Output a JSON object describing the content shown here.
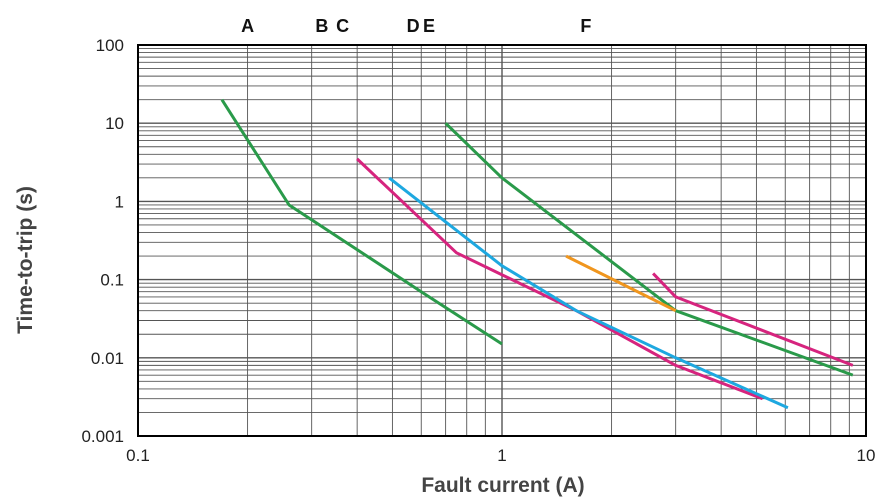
{
  "chart_data": {
    "type": "line",
    "xscale": "log",
    "yscale": "log",
    "xlim": [
      0.1,
      10
    ],
    "ylim": [
      0.001,
      100
    ],
    "xlabel": "Fault current (A)",
    "ylabel": "Time-to-trip (s)",
    "x_tick_labels": [
      "0.1",
      "1",
      "10"
    ],
    "y_tick_labels": [
      "0.001",
      "0.01",
      "0.1",
      "1",
      "10",
      "100"
    ],
    "grid": true,
    "zone_labels": [
      {
        "text": "A",
        "x": 0.2
      },
      {
        "text": "B",
        "x": 0.32
      },
      {
        "text": "C",
        "x": 0.365
      },
      {
        "text": "D",
        "x": 0.57
      },
      {
        "text": "E",
        "x": 0.63
      },
      {
        "text": "F",
        "x": 1.7
      }
    ],
    "series": [
      {
        "color": "#2a9a4a",
        "points": [
          [
            0.17,
            20
          ],
          [
            0.26,
            0.9
          ],
          [
            0.6,
            0.07
          ],
          [
            1.0,
            0.015
          ]
        ]
      },
      {
        "color": "#d6247e",
        "points": [
          [
            0.4,
            3.5
          ],
          [
            0.75,
            0.22
          ],
          [
            1.6,
            0.04
          ],
          [
            3.0,
            0.008
          ],
          [
            5.2,
            0.003
          ]
        ]
      },
      {
        "color": "#1ea8e0",
        "points": [
          [
            0.49,
            2.0
          ],
          [
            1.0,
            0.15
          ],
          [
            1.6,
            0.04
          ],
          [
            3.0,
            0.01
          ],
          [
            6.1,
            0.0023
          ]
        ]
      },
      {
        "color": "#2a9a4a",
        "points": [
          [
            0.7,
            10
          ],
          [
            1.0,
            2.0
          ],
          [
            3.0,
            0.04
          ],
          [
            9.2,
            0.006
          ]
        ]
      },
      {
        "color": "#f0961e",
        "points": [
          [
            1.5,
            0.2
          ],
          [
            3.0,
            0.04
          ]
        ]
      },
      {
        "color": "#d6247e",
        "points": [
          [
            2.6,
            0.12
          ],
          [
            3.0,
            0.06
          ],
          [
            9.2,
            0.008
          ]
        ]
      }
    ]
  }
}
